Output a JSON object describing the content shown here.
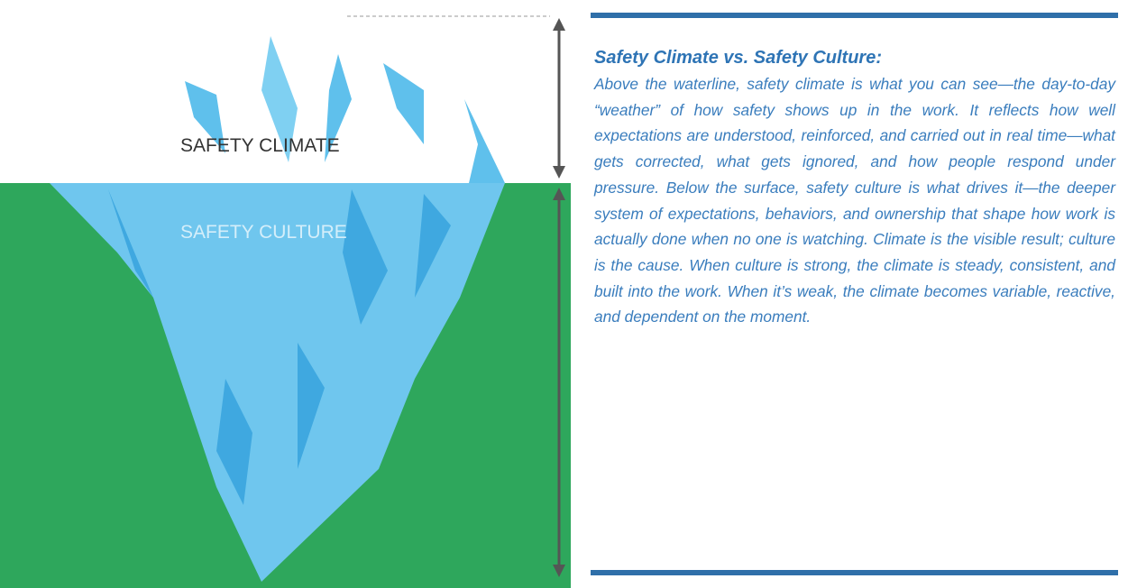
{
  "illustration": {
    "above_label": "SAFETY CLIMATE",
    "below_label": "SAFETY CULTURE"
  },
  "panel": {
    "heading": "Safety Climate vs. Safety Culture:",
    "body": "Above the waterline, safety climate is what you can see—the day-to-day “weather” of how safety shows up in the work. It reflects how well expectations are understood, reinforced, and carried out in real time—what gets corrected, what gets ignored, and how people respond under pressure. Below the surface, safety culture is what drives it—the deeper system of expectations, behaviors, and ownership that shape how work is actually done when no one is watching. Climate is the visible result; culture is the cause. When culture is strong, the climate is steady, consistent, and built into the work. When it’s weak, the climate becomes variable, reactive, and dependent on the moment."
  }
}
